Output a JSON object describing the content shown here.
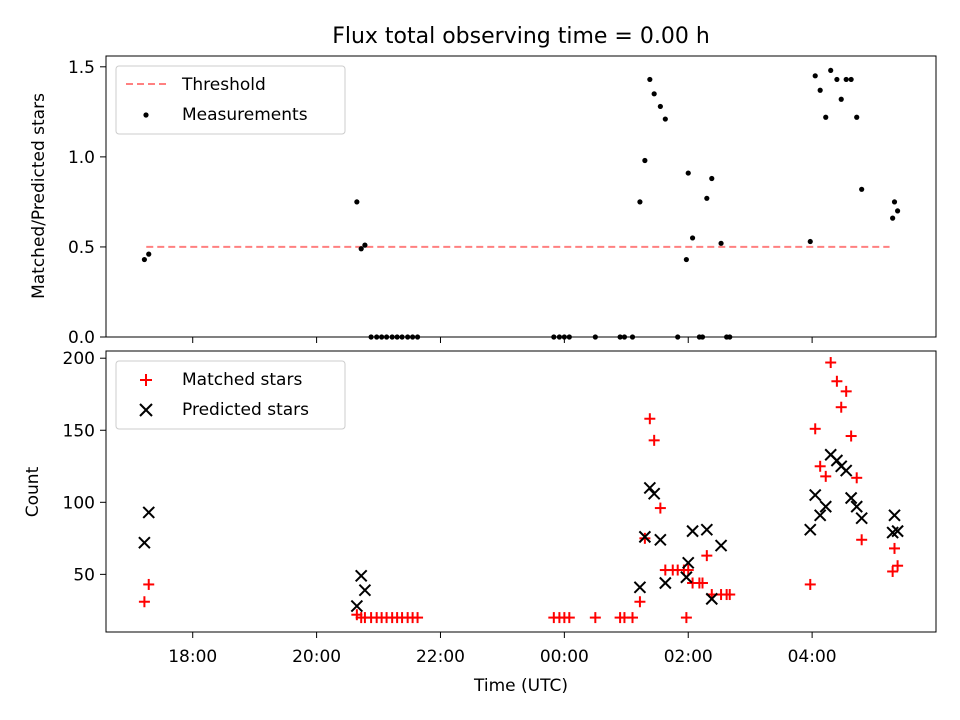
{
  "figure": {
    "title": "Flux total observing time = 0.00 h",
    "xlabel": "Time (UTC)"
  },
  "chart_data": [
    {
      "type": "scatter",
      "ylabel": "Matched/Predicted stars",
      "xlim": [
        16.6,
        30.0
      ],
      "ylim": [
        0,
        1.56
      ],
      "yticks": [
        0.0,
        0.5,
        1.0,
        1.5
      ],
      "ytick_labels": [
        "0.0",
        "0.5",
        "1.0",
        "1.5"
      ],
      "x_tick_values": [
        18,
        20,
        22,
        24,
        26,
        28
      ],
      "legend_position": "top-left",
      "threshold": {
        "name": "Threshold",
        "value": 0.5,
        "x": [
          17.25,
          29.25
        ],
        "color": "#ff8080"
      },
      "series": [
        {
          "name": "Measurements",
          "color": "#000000",
          "points": [
            [
              17.22,
              0.43
            ],
            [
              17.29,
              0.46
            ],
            [
              20.65,
              0.75
            ],
            [
              20.72,
              0.49
            ],
            [
              20.78,
              0.51
            ],
            [
              20.88,
              0.0
            ],
            [
              20.97,
              0.0
            ],
            [
              21.05,
              0.0
            ],
            [
              21.13,
              0.0
            ],
            [
              21.22,
              0.0
            ],
            [
              21.3,
              0.0
            ],
            [
              21.38,
              0.0
            ],
            [
              21.47,
              0.0
            ],
            [
              21.55,
              0.0
            ],
            [
              21.63,
              0.0
            ],
            [
              23.83,
              0.0
            ],
            [
              23.92,
              0.0
            ],
            [
              24.0,
              0.0
            ],
            [
              24.08,
              0.0
            ],
            [
              24.5,
              0.0
            ],
            [
              24.9,
              0.0
            ],
            [
              24.97,
              0.0
            ],
            [
              25.1,
              0.0
            ],
            [
              25.22,
              0.75
            ],
            [
              25.3,
              0.98
            ],
            [
              25.38,
              1.43
            ],
            [
              25.45,
              1.35
            ],
            [
              25.55,
              1.28
            ],
            [
              25.63,
              1.21
            ],
            [
              25.83,
              0.0
            ],
            [
              25.97,
              0.43
            ],
            [
              26.0,
              0.91
            ],
            [
              26.07,
              0.55
            ],
            [
              26.18,
              0.0
            ],
            [
              26.23,
              0.0
            ],
            [
              26.3,
              0.77
            ],
            [
              26.38,
              0.88
            ],
            [
              26.53,
              0.52
            ],
            [
              26.62,
              0.0
            ],
            [
              26.67,
              0.0
            ],
            [
              27.97,
              0.53
            ],
            [
              28.05,
              1.45
            ],
            [
              28.13,
              1.37
            ],
            [
              28.22,
              1.22
            ],
            [
              28.3,
              1.48
            ],
            [
              28.4,
              1.43
            ],
            [
              28.47,
              1.32
            ],
            [
              28.55,
              1.43
            ],
            [
              28.63,
              1.43
            ],
            [
              28.72,
              1.22
            ],
            [
              28.8,
              0.82
            ],
            [
              29.3,
              0.66
            ],
            [
              29.33,
              0.75
            ],
            [
              29.38,
              0.7
            ]
          ]
        }
      ]
    },
    {
      "type": "scatter",
      "ylabel": "Count",
      "xlim": [
        16.6,
        30.0
      ],
      "ylim": [
        10,
        205
      ],
      "yticks": [
        50,
        100,
        150,
        200
      ],
      "ytick_labels": [
        "50",
        "100",
        "150",
        "200"
      ],
      "x_tick_values": [
        18,
        20,
        22,
        24,
        26,
        28
      ],
      "x_tick_labels": [
        "18:00",
        "20:00",
        "22:00",
        "00:00",
        "02:00",
        "04:00"
      ],
      "legend_position": "top-left",
      "series": [
        {
          "name": "Matched stars",
          "marker": "plus",
          "color": "#ff0000",
          "points": [
            [
              17.22,
              31
            ],
            [
              17.29,
              43
            ],
            [
              20.65,
              22
            ],
            [
              20.72,
              20
            ],
            [
              20.78,
              20
            ],
            [
              20.88,
              20
            ],
            [
              20.97,
              20
            ],
            [
              21.05,
              20
            ],
            [
              21.13,
              20
            ],
            [
              21.22,
              20
            ],
            [
              21.3,
              20
            ],
            [
              21.38,
              20
            ],
            [
              21.47,
              20
            ],
            [
              21.55,
              20
            ],
            [
              21.63,
              20
            ],
            [
              23.83,
              20
            ],
            [
              23.92,
              20
            ],
            [
              24.0,
              20
            ],
            [
              24.08,
              20
            ],
            [
              24.5,
              20
            ],
            [
              24.9,
              20
            ],
            [
              24.97,
              20
            ],
            [
              25.1,
              20
            ],
            [
              25.22,
              31
            ],
            [
              25.3,
              75
            ],
            [
              25.38,
              158
            ],
            [
              25.45,
              143
            ],
            [
              25.55,
              96
            ],
            [
              25.63,
              53
            ],
            [
              25.75,
              53
            ],
            [
              25.83,
              53
            ],
            [
              25.97,
              20
            ],
            [
              25.93,
              53
            ],
            [
              26.0,
              53
            ],
            [
              26.07,
              44
            ],
            [
              26.18,
              44
            ],
            [
              26.23,
              44
            ],
            [
              26.3,
              63
            ],
            [
              26.38,
              36
            ],
            [
              26.53,
              36
            ],
            [
              26.62,
              36
            ],
            [
              26.67,
              36
            ],
            [
              27.97,
              43
            ],
            [
              28.05,
              151
            ],
            [
              28.13,
              125
            ],
            [
              28.22,
              118
            ],
            [
              28.3,
              197
            ],
            [
              28.4,
              184
            ],
            [
              28.47,
              166
            ],
            [
              28.55,
              177
            ],
            [
              28.63,
              146
            ],
            [
              28.72,
              117
            ],
            [
              28.8,
              74
            ],
            [
              29.3,
              52
            ],
            [
              29.33,
              68
            ],
            [
              29.38,
              56
            ]
          ]
        },
        {
          "name": "Predicted stars",
          "marker": "x",
          "color": "#000000",
          "points": [
            [
              17.22,
              72
            ],
            [
              17.29,
              93
            ],
            [
              20.65,
              28
            ],
            [
              20.72,
              49
            ],
            [
              20.78,
              39
            ],
            [
              25.22,
              41
            ],
            [
              25.3,
              76
            ],
            [
              25.38,
              110
            ],
            [
              25.45,
              106
            ],
            [
              25.55,
              74
            ],
            [
              25.63,
              44
            ],
            [
              25.97,
              48
            ],
            [
              26.0,
              58
            ],
            [
              26.07,
              80
            ],
            [
              26.3,
              81
            ],
            [
              26.38,
              33
            ],
            [
              26.53,
              70
            ],
            [
              27.97,
              81
            ],
            [
              28.05,
              105
            ],
            [
              28.13,
              91
            ],
            [
              28.22,
              97
            ],
            [
              28.3,
              133
            ],
            [
              28.4,
              129
            ],
            [
              28.47,
              125
            ],
            [
              28.55,
              122
            ],
            [
              28.63,
              103
            ],
            [
              28.72,
              97
            ],
            [
              28.8,
              89
            ],
            [
              29.3,
              79
            ],
            [
              29.33,
              91
            ],
            [
              29.38,
              80
            ]
          ]
        }
      ]
    }
  ]
}
